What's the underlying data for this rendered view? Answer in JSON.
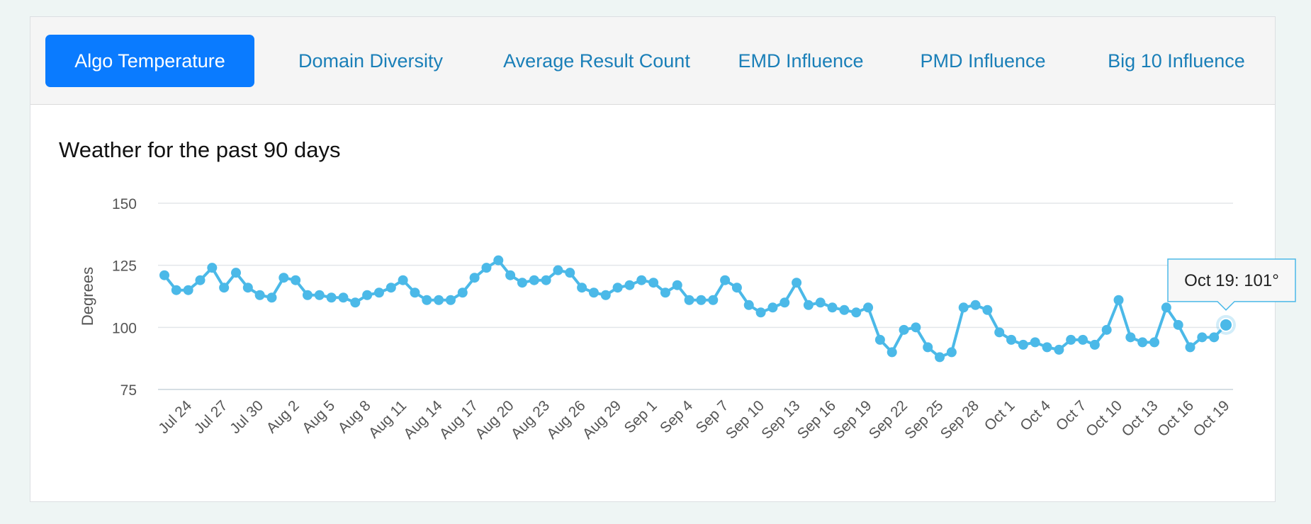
{
  "tabs": [
    {
      "label": "Algo Temperature",
      "active": true
    },
    {
      "label": "Domain Diversity",
      "active": false
    },
    {
      "label": "Average Result Count",
      "active": false
    },
    {
      "label": "EMD Influence",
      "active": false
    },
    {
      "label": "PMD Influence",
      "active": false
    },
    {
      "label": "Big 10 Influence",
      "active": false
    }
  ],
  "colors": {
    "accent": "#0a7bff",
    "line": "#4bb9e8",
    "tab_text": "#1a7fb8"
  },
  "chart_data": {
    "type": "line",
    "title": "Weather for the past 90 days",
    "xlabel": "",
    "ylabel": "Degrees",
    "ylim": [
      75,
      150
    ],
    "yticks": [
      75,
      100,
      125,
      150
    ],
    "x_tick_labels": [
      "Jul 24",
      "Jul 27",
      "Jul 30",
      "Aug 2",
      "Aug 5",
      "Aug 8",
      "Aug 11",
      "Aug 14",
      "Aug 17",
      "Aug 20",
      "Aug 23",
      "Aug 26",
      "Aug 29",
      "Sep 1",
      "Sep 4",
      "Sep 7",
      "Sep 10",
      "Sep 13",
      "Sep 16",
      "Sep 19",
      "Sep 22",
      "Sep 25",
      "Sep 28",
      "Oct 1",
      "Oct 4",
      "Oct 7",
      "Oct 10",
      "Oct 13",
      "Oct 16",
      "Oct 19"
    ],
    "values": [
      121,
      115,
      115,
      119,
      124,
      116,
      122,
      116,
      113,
      112,
      120,
      119,
      113,
      113,
      112,
      112,
      110,
      113,
      114,
      116,
      119,
      114,
      111,
      111,
      111,
      114,
      120,
      124,
      127,
      121,
      118,
      119,
      119,
      123,
      122,
      116,
      114,
      113,
      116,
      117,
      119,
      118,
      114,
      117,
      111,
      111,
      111,
      119,
      116,
      109,
      106,
      108,
      110,
      118,
      109,
      110,
      108,
      107,
      106,
      108,
      95,
      90,
      99,
      100,
      92,
      88,
      90,
      108,
      109,
      107,
      98,
      95,
      93,
      94,
      92,
      91,
      95,
      95,
      93,
      99,
      111,
      96,
      94,
      94,
      108,
      101,
      92,
      96,
      96,
      101
    ],
    "series_name": "Temperature",
    "tooltip": {
      "label": "Oct 19: 101°",
      "index": 89
    }
  }
}
